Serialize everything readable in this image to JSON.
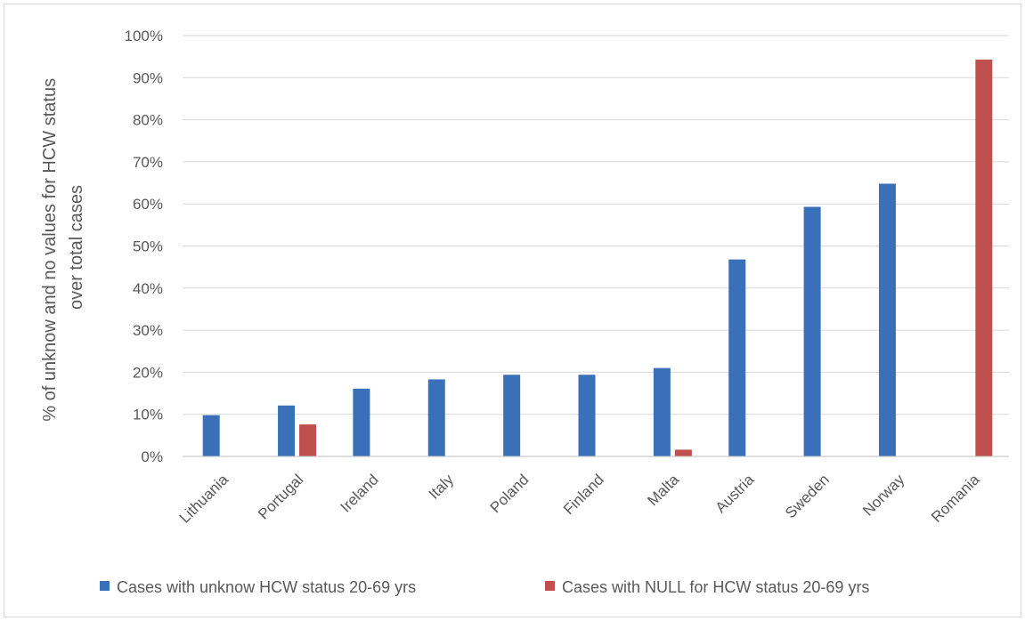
{
  "chart_data": {
    "type": "bar",
    "title": "",
    "xlabel": "",
    "ylabel": [
      "% of unknow and no values for HCW status",
      "over total cases"
    ],
    "ylim": [
      0,
      100
    ],
    "y_ticks": [
      "0%",
      "10%",
      "20%",
      "30%",
      "40%",
      "50%",
      "60%",
      "70%",
      "80%",
      "90%",
      "100%"
    ],
    "grid": true,
    "legend_position": "bottom",
    "categories": [
      "Lithuania",
      "Portugal",
      "Ireland",
      "Italy",
      "Poland",
      "Finland",
      "Malta",
      "Austria",
      "Sweden",
      "Norway",
      "Romania"
    ],
    "series": [
      {
        "name": "Cases with unknow HCW status 20-69 yrs",
        "color": "#3a70b8",
        "values": [
          9.8,
          12.1,
          16.1,
          18.3,
          19.4,
          19.4,
          21.0,
          46.8,
          59.3,
          64.8,
          0
        ]
      },
      {
        "name": "Cases with NULL for HCW status 20-69 yrs",
        "color": "#c0504d",
        "values": [
          0,
          7.6,
          0,
          0,
          0,
          0,
          1.6,
          0,
          0,
          0,
          94.3
        ]
      }
    ]
  }
}
